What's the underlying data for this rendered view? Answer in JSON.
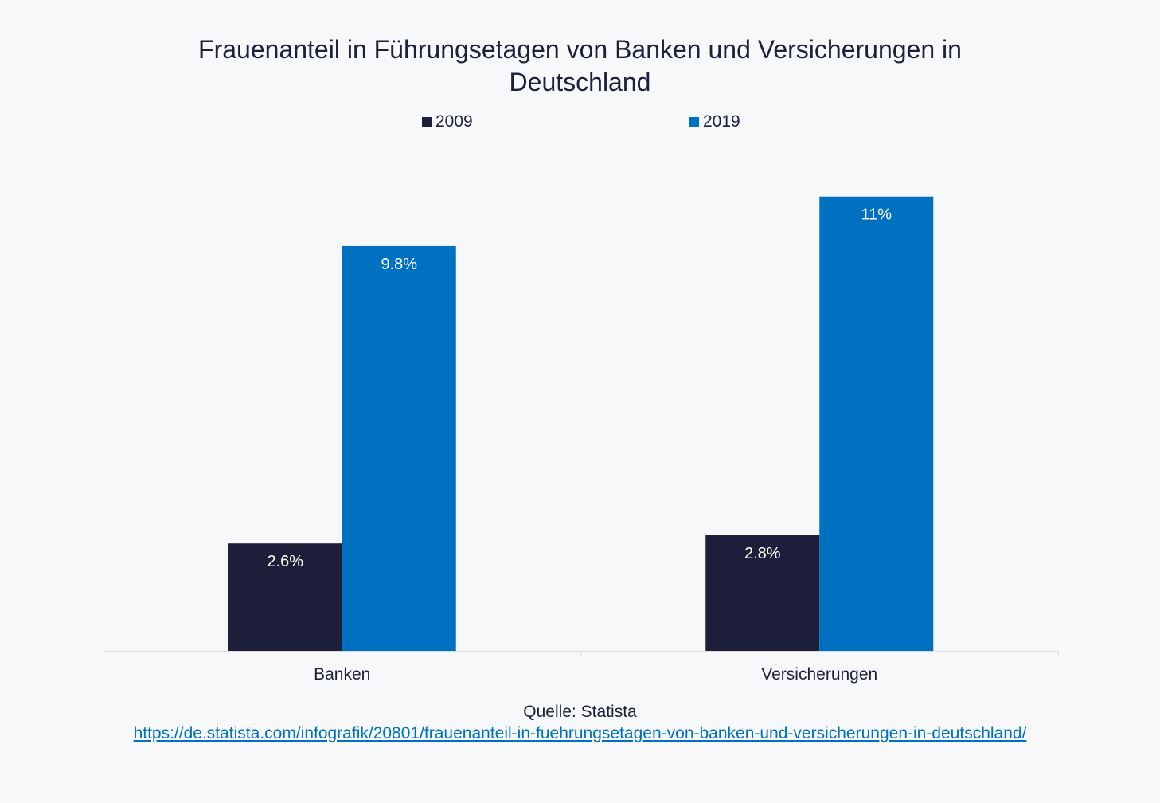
{
  "chart_data": {
    "type": "bar",
    "title": "Frauenanteil in Führungsetagen von Banken und Versicherungen in Deutschland",
    "categories": [
      "Banken",
      "Versicherungen"
    ],
    "series": [
      {
        "name": "2009",
        "values": [
          2.6,
          2.8
        ],
        "labels": [
          "2.6%",
          "2.8%"
        ],
        "color": "#1e1f3b"
      },
      {
        "name": "2019",
        "values": [
          9.8,
          11
        ],
        "labels": [
          "9.8%",
          "11%"
        ],
        "color": "#0070c0"
      }
    ],
    "xlabel": "",
    "ylabel": "",
    "ylim": [
      0,
      11.4
    ],
    "grid": false,
    "legend": "top-center"
  },
  "source": {
    "label": "Quelle: Statista",
    "url": "https://de.statista.com/infografik/20801/frauenanteil-in-fuehrungsetagen-von-banken-und-versicherungen-in-deutschland/"
  }
}
